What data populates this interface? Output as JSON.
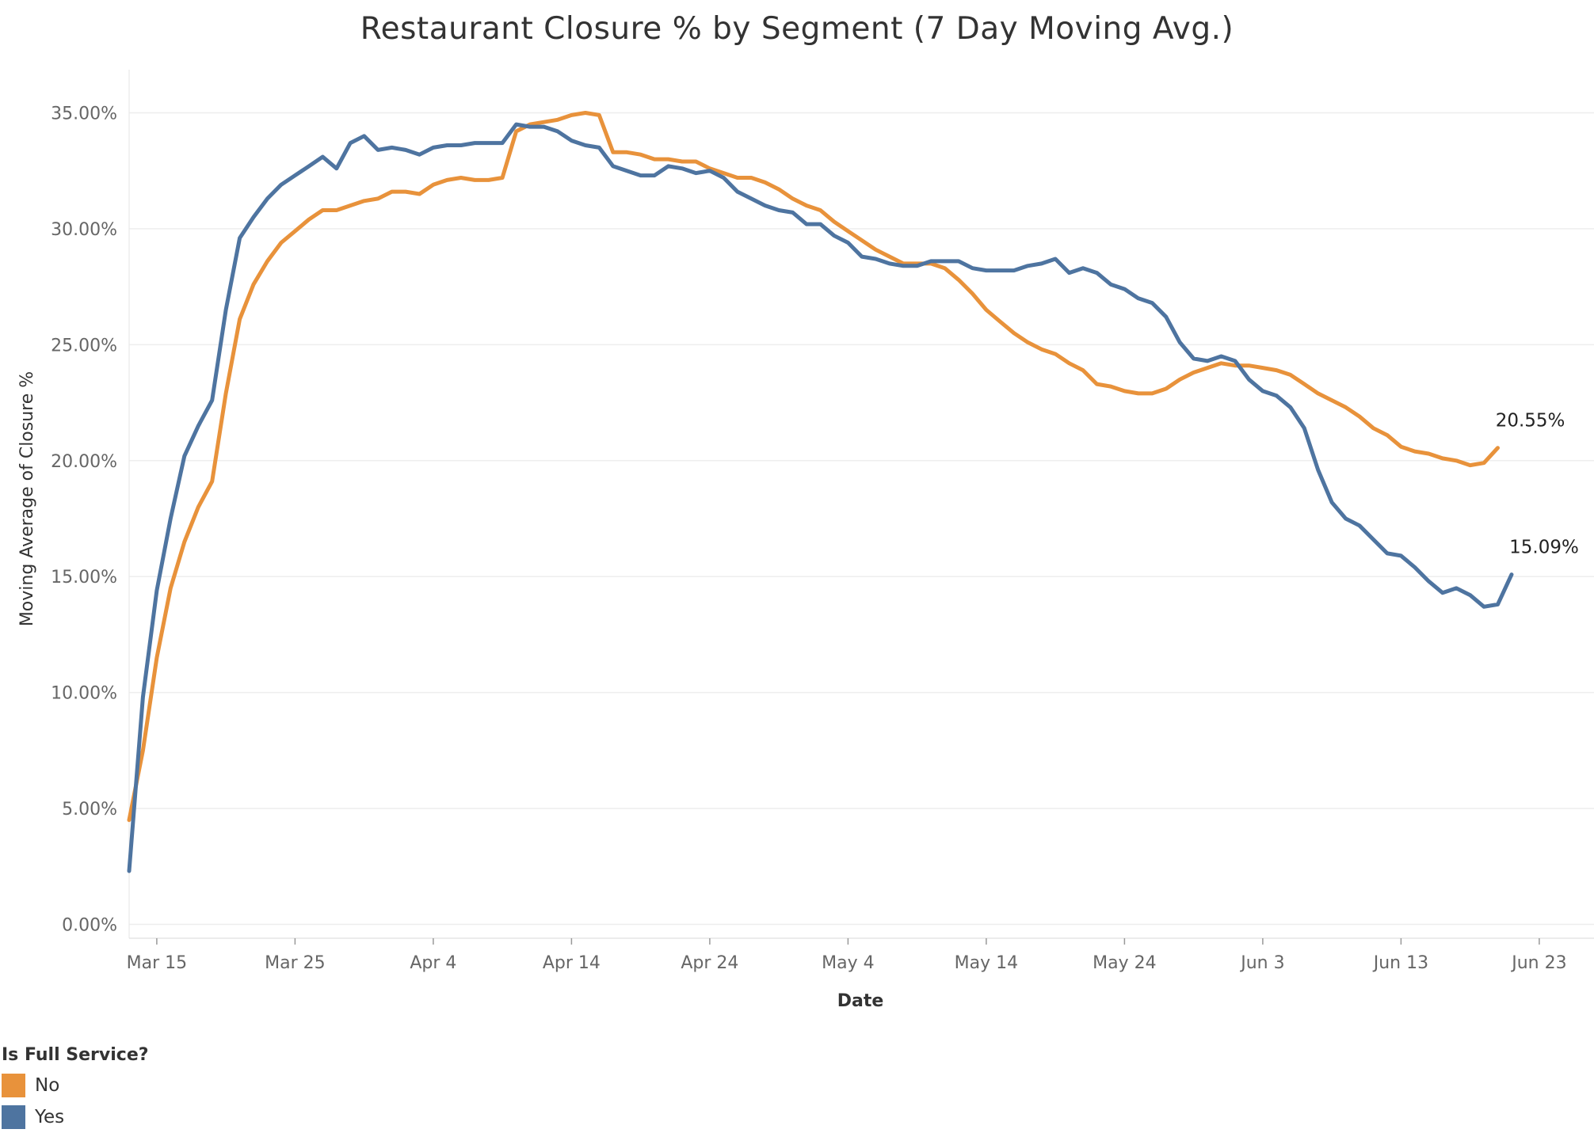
{
  "chart_data": {
    "type": "line",
    "title": "Restaurant Closure % by Segment (7 Day Moving Avg.)",
    "xlabel": "Date",
    "ylabel": "Moving Average of Closure %",
    "ylim": [
      0,
      36
    ],
    "y_ticks": [
      "0.00%",
      "5.00%",
      "10.00%",
      "15.00%",
      "20.00%",
      "25.00%",
      "30.00%",
      "35.00%"
    ],
    "y_tick_values": [
      0,
      5,
      10,
      15,
      20,
      25,
      30,
      35
    ],
    "x_ticks": [
      "Mar 15",
      "Mar 25",
      "Apr 4",
      "Apr 14",
      "Apr 24",
      "May 4",
      "May 14",
      "May 24",
      "Jun 3",
      "Jun 13",
      "Jun 23"
    ],
    "x_tick_dates": [
      "2020-03-15",
      "2020-03-25",
      "2020-04-04",
      "2020-04-14",
      "2020-04-24",
      "2020-05-04",
      "2020-05-14",
      "2020-05-24",
      "2020-06-03",
      "2020-06-13",
      "2020-06-23"
    ],
    "x_range": [
      "2020-03-13",
      "2020-06-23"
    ],
    "grid": "horizontal",
    "legend": {
      "title": "Is Full Service?",
      "placement": "bottom-left",
      "items": [
        {
          "label": "No",
          "color": "#e8923b"
        },
        {
          "label": "Yes",
          "color": "#4e74a0"
        }
      ]
    },
    "x_start": "2020-03-13",
    "series": [
      {
        "name": "No",
        "color": "#e8923b",
        "end_label": "20.55%",
        "values": [
          4.5,
          7.5,
          11.5,
          14.5,
          16.5,
          18.0,
          19.1,
          22.9,
          26.1,
          27.6,
          28.6,
          29.4,
          29.9,
          30.4,
          30.8,
          30.8,
          31.0,
          31.2,
          31.3,
          31.6,
          31.6,
          31.5,
          31.9,
          32.1,
          32.2,
          32.1,
          32.1,
          32.2,
          34.2,
          34.5,
          34.6,
          34.7,
          34.9,
          35.0,
          34.9,
          33.3,
          33.3,
          33.2,
          33.0,
          33.0,
          32.9,
          32.9,
          32.6,
          32.4,
          32.2,
          32.2,
          32.0,
          31.7,
          31.3,
          31.0,
          30.8,
          30.3,
          29.9,
          29.5,
          29.1,
          28.8,
          28.5,
          28.5,
          28.5,
          28.3,
          27.8,
          27.2,
          26.5,
          26.0,
          25.5,
          25.1,
          24.8,
          24.6,
          24.2,
          23.9,
          23.3,
          23.2,
          23.0,
          22.9,
          22.9,
          23.1,
          23.5,
          23.8,
          24.0,
          24.2,
          24.1,
          24.1,
          24.0,
          23.9,
          23.7,
          23.3,
          22.9,
          22.6,
          22.3,
          21.9,
          21.4,
          21.1,
          20.6,
          20.4,
          20.3,
          20.1,
          20.0,
          19.8,
          19.9,
          20.55
        ]
      },
      {
        "name": "Yes",
        "color": "#4e74a0",
        "end_label": "15.09%",
        "values": [
          2.3,
          9.8,
          14.4,
          17.5,
          20.2,
          21.5,
          22.6,
          26.5,
          29.6,
          30.5,
          31.3,
          31.9,
          32.3,
          32.7,
          33.1,
          32.6,
          33.7,
          34.0,
          33.4,
          33.5,
          33.4,
          33.2,
          33.5,
          33.6,
          33.6,
          33.7,
          33.7,
          33.7,
          34.5,
          34.4,
          34.4,
          34.2,
          33.8,
          33.6,
          33.5,
          32.7,
          32.5,
          32.3,
          32.3,
          32.7,
          32.6,
          32.4,
          32.5,
          32.2,
          31.6,
          31.3,
          31.0,
          30.8,
          30.7,
          30.2,
          30.2,
          29.7,
          29.4,
          28.8,
          28.7,
          28.5,
          28.4,
          28.4,
          28.6,
          28.6,
          28.6,
          28.3,
          28.2,
          28.2,
          28.2,
          28.4,
          28.5,
          28.7,
          28.1,
          28.3,
          28.1,
          27.6,
          27.4,
          27.0,
          26.8,
          26.2,
          25.1,
          24.4,
          24.3,
          24.5,
          24.3,
          23.5,
          23.0,
          22.8,
          22.3,
          21.4,
          19.6,
          18.2,
          17.5,
          17.2,
          16.6,
          16.0,
          15.9,
          15.4,
          14.8,
          14.3,
          14.5,
          14.2,
          13.7,
          13.8,
          15.09
        ]
      }
    ]
  }
}
